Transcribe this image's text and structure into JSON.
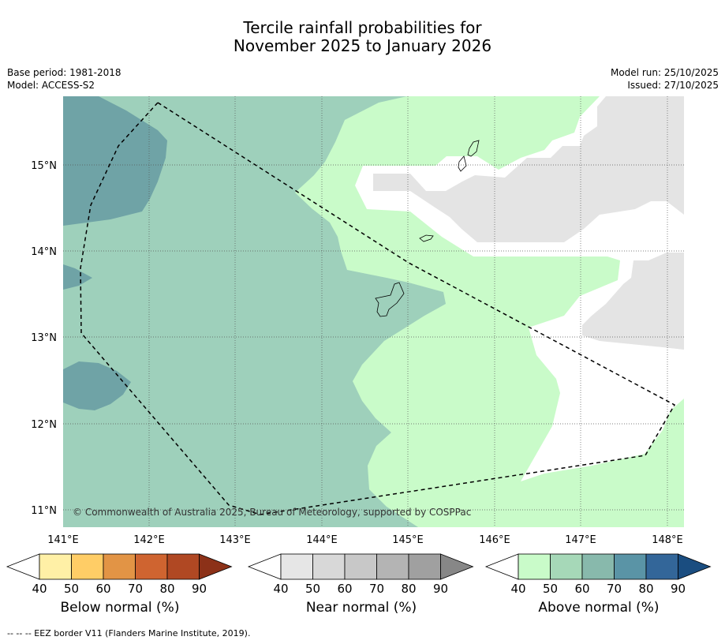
{
  "title_line1": "Tercile rainfall probabilities for",
  "title_line2": "November 2025 to January 2026",
  "base_period": "Base period: 1981-2018",
  "model": "Model: ACCESS-S2",
  "model_run": "Model run: 25/10/2025",
  "issued": "Issued: 27/10/2025",
  "copyright": "© Commonwealth of Australia 2025, Bureau of Meteorology, supported by COSPPac",
  "lat_labels": [
    "15°N",
    "14°N",
    "13°N",
    "12°N",
    "11°N"
  ],
  "lon_labels": [
    "141°E",
    "142°E",
    "143°E",
    "144°E",
    "145°E",
    "146°E",
    "147°E",
    "148°E"
  ],
  "colorbars": [
    {
      "title": "Below normal (%)",
      "ticks": [
        "40",
        "50",
        "60",
        "70",
        "80",
        "90"
      ],
      "colors": [
        "#fff0a6",
        "#ffcd66",
        "#e29445",
        "#cf6430",
        "#b04823",
        "#8c3118"
      ]
    },
    {
      "title": "Near normal (%)",
      "ticks": [
        "40",
        "50",
        "60",
        "70",
        "80",
        "90"
      ],
      "colors": [
        "#e6e6e6",
        "#d8d8d8",
        "#c8c8c8",
        "#b4b4b4",
        "#a0a0a0",
        "#878787"
      ]
    },
    {
      "title": "Above normal (%)",
      "ticks": [
        "40",
        "50",
        "60",
        "70",
        "80",
        "90"
      ],
      "colors": [
        "#c9fbc9",
        "#a6d8b8",
        "#88b9ac",
        "#5a94a6",
        "#336699",
        "#1a4d80"
      ]
    }
  ],
  "footer": "-- -- -- EEZ border V11 (Flanders Marine Institute, 2019).",
  "colors": {
    "above_50": "#9ed0bb",
    "above_40": "#c9fbc9",
    "above_70": "#6fa3a6",
    "near_40": "#e4e4e4"
  }
}
